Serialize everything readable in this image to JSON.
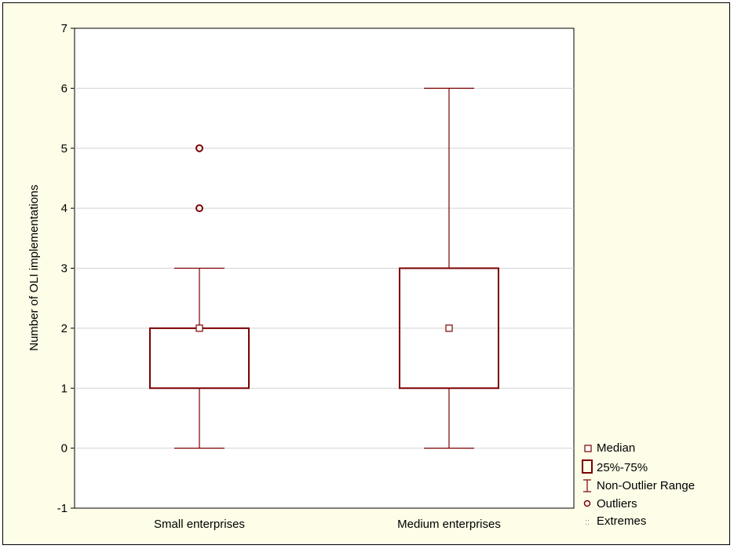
{
  "chart_data": {
    "type": "box",
    "ylabel": "Number of OLI implementations",
    "xlabel": "",
    "ylim": [
      -1,
      7
    ],
    "yticks": [
      -1,
      0,
      1,
      2,
      3,
      4,
      5,
      6,
      7
    ],
    "grid": true,
    "categories": [
      "Small enterprises",
      "Medium enterprises"
    ],
    "boxes": [
      {
        "category": "Small enterprises",
        "median": 2,
        "q1": 1,
        "q3": 2,
        "whisker_low": 0,
        "whisker_high": 3,
        "outliers": [
          4,
          5
        ],
        "extremes": []
      },
      {
        "category": "Medium enterprises",
        "median": 2,
        "q1": 1,
        "q3": 3,
        "whisker_low": 0,
        "whisker_high": 6,
        "outliers": [],
        "extremes": []
      }
    ],
    "legend": {
      "position": "bottom-right",
      "items": [
        {
          "key": "median",
          "label": "Median"
        },
        {
          "key": "box",
          "label": "25%-75%"
        },
        {
          "key": "whisker",
          "label": "Non-Outlier Range"
        },
        {
          "key": "outlier",
          "label": "Outliers"
        },
        {
          "key": "extreme",
          "label": "Extremes"
        }
      ]
    },
    "colors": {
      "series": "#7b0000",
      "grid": "#d4d4d4",
      "background": "#fdfde8",
      "plot_background": "#ffffff"
    }
  }
}
